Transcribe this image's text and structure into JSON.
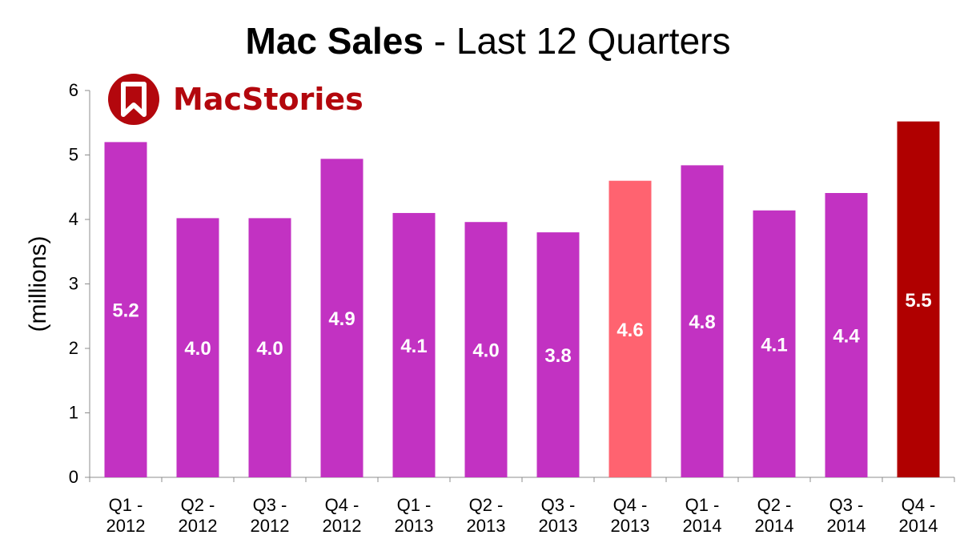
{
  "title": {
    "bold": "Mac Sales",
    "rest": " - Last 12 Quarters"
  },
  "logo": {
    "text": "MacStories",
    "color": "#b3070d"
  },
  "chart_data": {
    "type": "bar",
    "title": "Mac Sales - Last 12 Quarters",
    "xlabel": "",
    "ylabel": "(millions)",
    "ylim": [
      0,
      6
    ],
    "yticks": [
      0,
      1,
      2,
      3,
      4,
      5,
      6
    ],
    "grid": false,
    "categories": [
      [
        "Q1 -",
        "2012"
      ],
      [
        "Q2 -",
        "2012"
      ],
      [
        "Q3 -",
        "2012"
      ],
      [
        "Q4 -",
        "2012"
      ],
      [
        "Q1 -",
        "2013"
      ],
      [
        "Q2 -",
        "2013"
      ],
      [
        "Q3 -",
        "2013"
      ],
      [
        "Q4 -",
        "2013"
      ],
      [
        "Q1 -",
        "2014"
      ],
      [
        "Q2 -",
        "2014"
      ],
      [
        "Q3 -",
        "2014"
      ],
      [
        "Q4 -",
        "2014"
      ]
    ],
    "values": [
      5.2,
      4.02,
      4.02,
      4.94,
      4.1,
      3.96,
      3.8,
      4.6,
      4.84,
      4.14,
      4.41,
      5.52
    ],
    "data_labels": [
      "5.2",
      "4.0",
      "4.0",
      "4.9",
      "4.1",
      "4.0",
      "3.8",
      "4.6",
      "4.8",
      "4.1",
      "4.4",
      "5.5"
    ],
    "bar_colors": [
      "#c232c2",
      "#c232c2",
      "#c232c2",
      "#c232c2",
      "#c232c2",
      "#c232c2",
      "#c232c2",
      "#ff6370",
      "#c232c2",
      "#c232c2",
      "#c232c2",
      "#b00000"
    ]
  }
}
